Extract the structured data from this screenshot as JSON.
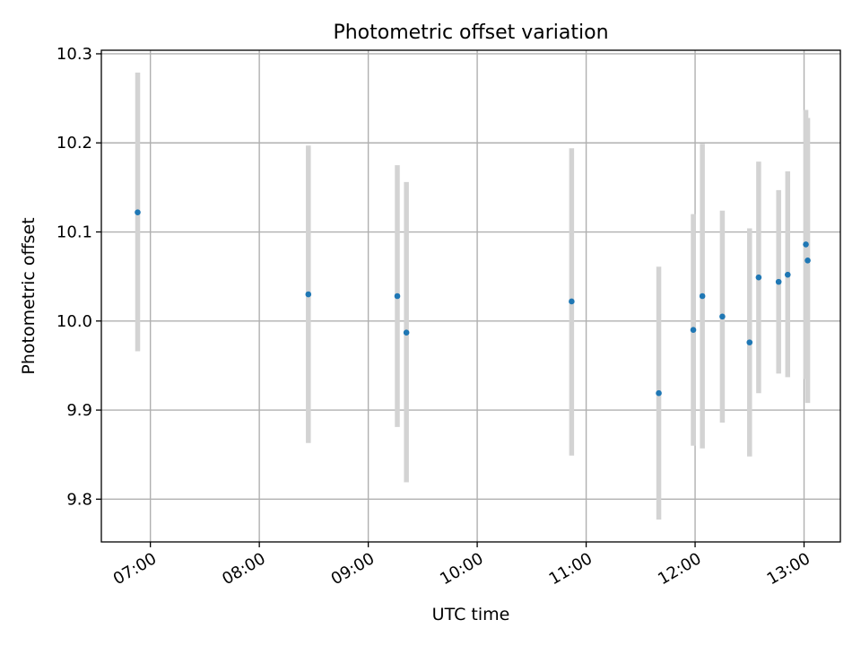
{
  "chart_data": {
    "type": "scatter",
    "title": "Photometric offset variation",
    "xlabel": "UTC time",
    "ylabel": "Photometric offset",
    "x_tick_labels": [
      "07:00",
      "08:00",
      "09:00",
      "10:00",
      "11:00",
      "12:00",
      "13:00"
    ],
    "x_tick_hours": [
      7,
      8,
      9,
      10,
      11,
      12,
      13
    ],
    "y_ticks": [
      9.8,
      9.9,
      10.0,
      10.1,
      10.2,
      10.3
    ],
    "y_tick_labels": [
      "9.8",
      "9.9",
      "10.0",
      "10.1",
      "10.2",
      "10.3"
    ],
    "xlim": [
      "06:33",
      "13:20"
    ],
    "ylim": [
      9.752,
      10.304
    ],
    "grid": true,
    "colors": {
      "point": "#1f77b4",
      "errorbar": "#d3d3d3",
      "grid": "#b0b0b0"
    },
    "points": [
      {
        "x": "06:53",
        "y": 10.122,
        "err_low": 9.966,
        "err_high": 10.279
      },
      {
        "x": "08:27",
        "y": 10.03,
        "err_low": 9.863,
        "err_high": 10.197
      },
      {
        "x": "09:16",
        "y": 10.028,
        "err_low": 9.881,
        "err_high": 10.175
      },
      {
        "x": "09:21",
        "y": 9.987,
        "err_low": 9.819,
        "err_high": 10.156
      },
      {
        "x": "10:52",
        "y": 10.022,
        "err_low": 9.849,
        "err_high": 10.194
      },
      {
        "x": "11:40",
        "y": 9.919,
        "err_low": 9.777,
        "err_high": 10.061
      },
      {
        "x": "11:59",
        "y": 9.99,
        "err_low": 9.86,
        "err_high": 10.12
      },
      {
        "x": "12:04",
        "y": 10.028,
        "err_low": 9.857,
        "err_high": 10.199
      },
      {
        "x": "12:15",
        "y": 10.005,
        "err_low": 9.886,
        "err_high": 10.124
      },
      {
        "x": "12:30",
        "y": 9.976,
        "err_low": 9.848,
        "err_high": 10.104
      },
      {
        "x": "12:35",
        "y": 10.049,
        "err_low": 9.919,
        "err_high": 10.179
      },
      {
        "x": "12:46",
        "y": 10.044,
        "err_low": 9.941,
        "err_high": 10.147
      },
      {
        "x": "12:51",
        "y": 10.052,
        "err_low": 9.937,
        "err_high": 10.168
      },
      {
        "x": "13:01",
        "y": 10.086,
        "err_low": 9.935,
        "err_high": 10.237
      },
      {
        "x": "13:02",
        "y": 10.068,
        "err_low": 9.908,
        "err_high": 10.228
      }
    ]
  }
}
